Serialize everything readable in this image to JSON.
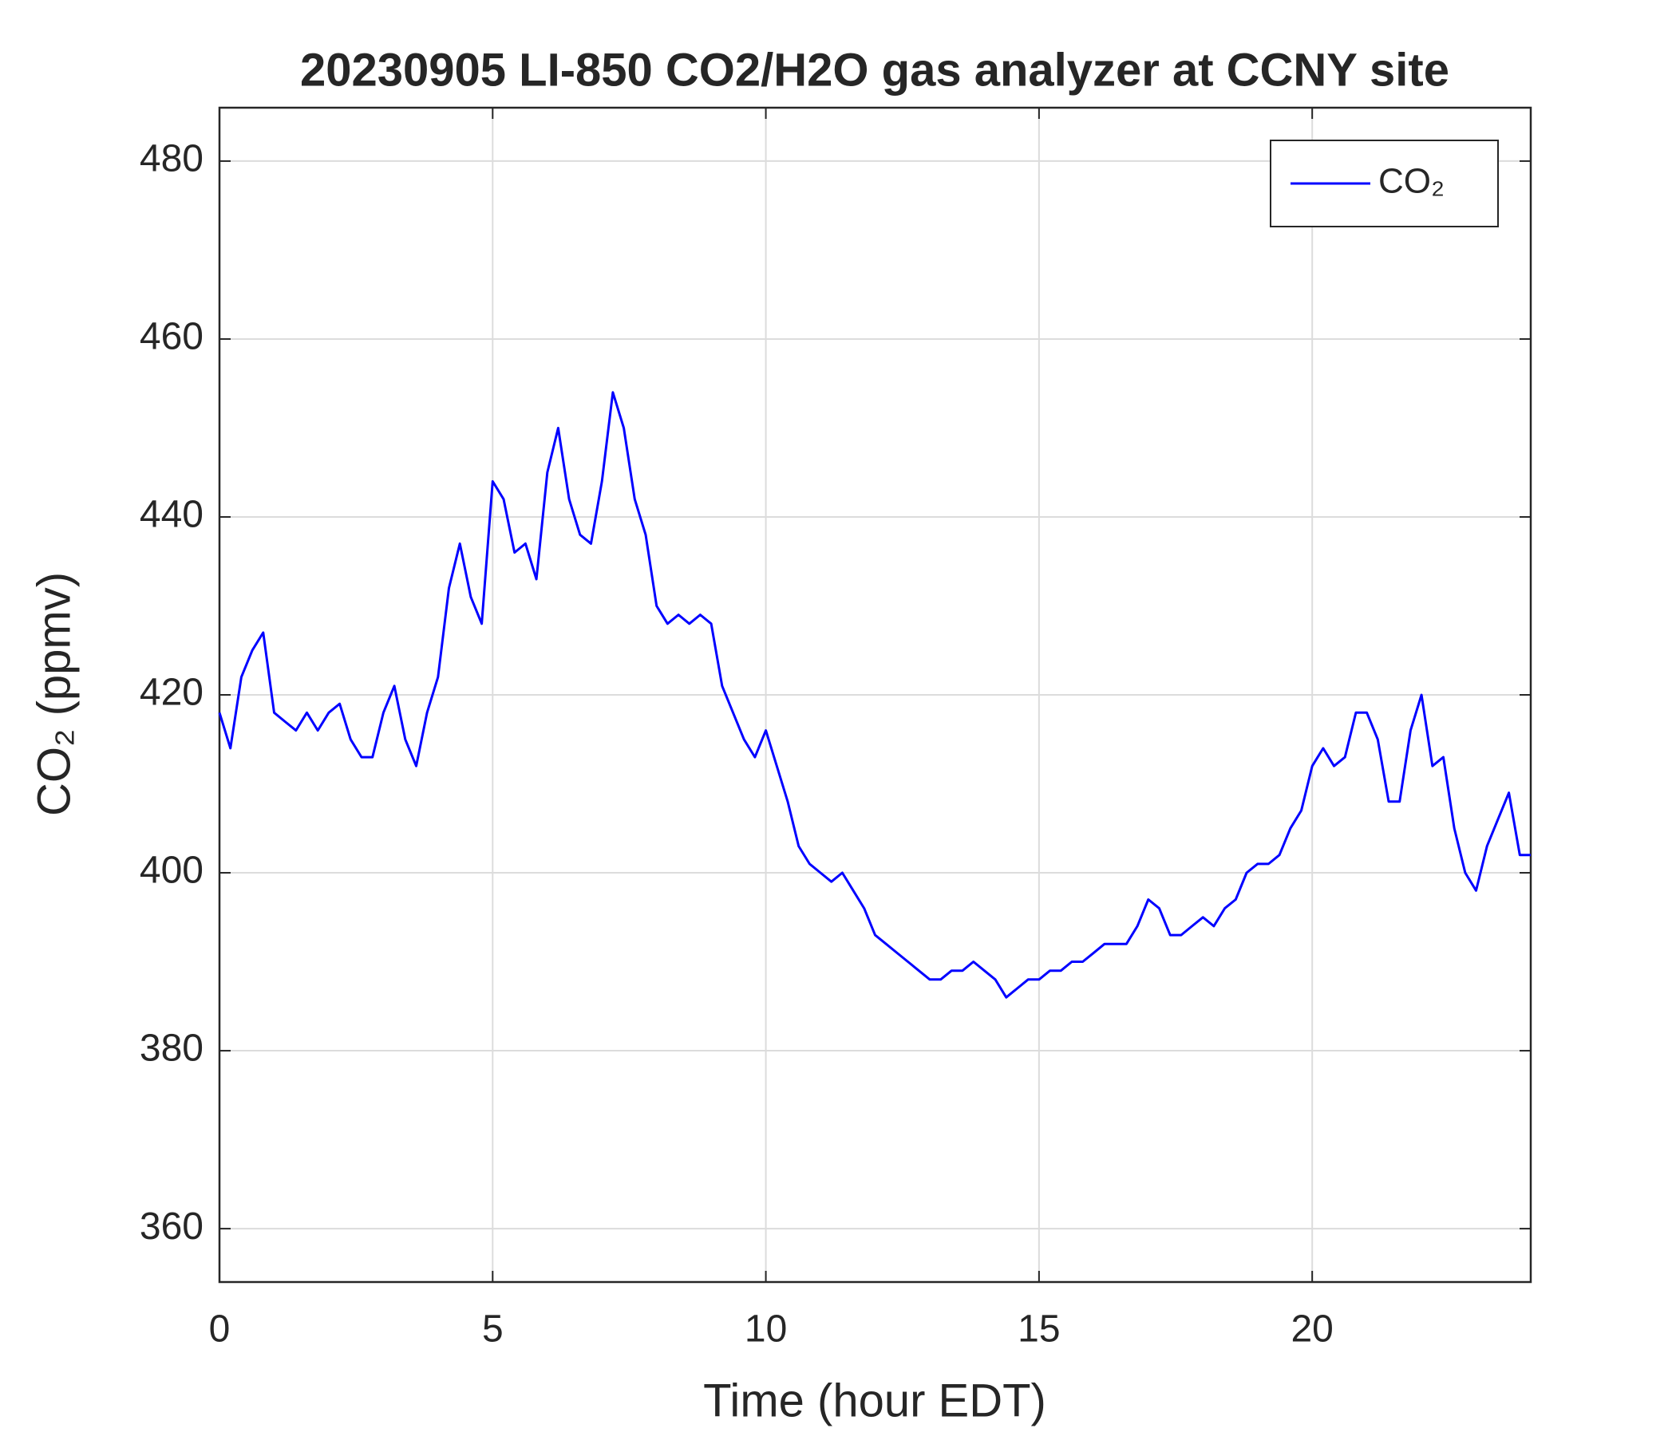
{
  "chart_data": {
    "type": "line",
    "title": "20230905 LI-850 CO2/H2O gas analyzer at CCNY site",
    "x_label": "Time (hour EDT)",
    "y_label": "CO₂ (ppmv)",
    "x": [
      0,
      0.2,
      0.4,
      0.6,
      0.8,
      1,
      1.2,
      1.4,
      1.6,
      1.8,
      2,
      2.2,
      2.4,
      2.6,
      2.8,
      3,
      3.2,
      3.4,
      3.6,
      3.8,
      4,
      4.2,
      4.4,
      4.6,
      4.8,
      5,
      5.2,
      5.4,
      5.6,
      5.8,
      6,
      6.2,
      6.4,
      6.6,
      6.8,
      7,
      7.2,
      7.4,
      7.6,
      7.8,
      8,
      8.2,
      8.4,
      8.6,
      8.8,
      9,
      9.2,
      9.4,
      9.6,
      9.8,
      10,
      10.2,
      10.4,
      10.6,
      10.8,
      11,
      11.2,
      11.4,
      11.6,
      11.8,
      12,
      12.2,
      12.4,
      12.6,
      12.8,
      13,
      13.2,
      13.4,
      13.6,
      13.8,
      14,
      14.2,
      14.4,
      14.6,
      14.8,
      15,
      15.2,
      15.4,
      15.6,
      15.8,
      16,
      16.2,
      16.4,
      16.6,
      16.8,
      17,
      17.2,
      17.4,
      17.6,
      17.8,
      18,
      18.2,
      18.4,
      18.6,
      18.8,
      19,
      19.2,
      19.4,
      19.6,
      19.8,
      20,
      20.2,
      20.4,
      20.6,
      20.8,
      21,
      21.2,
      21.4,
      21.6,
      21.8,
      22,
      22.2,
      22.4,
      22.6,
      22.8,
      23,
      23.2,
      23.4,
      23.6,
      23.8,
      24
    ],
    "series": [
      {
        "name": "CO₂",
        "color": "#0000ff",
        "values": [
          418,
          414,
          422,
          425,
          427,
          418,
          417,
          416,
          418,
          416,
          418,
          419,
          415,
          413,
          413,
          418,
          421,
          415,
          412,
          418,
          422,
          432,
          437,
          431,
          428,
          444,
          442,
          436,
          437,
          433,
          445,
          450,
          442,
          438,
          437,
          444,
          454,
          450,
          442,
          438,
          430,
          428,
          429,
          428,
          429,
          428,
          421,
          418,
          415,
          413,
          416,
          412,
          408,
          403,
          401,
          400,
          399,
          400,
          398,
          396,
          393,
          392,
          391,
          390,
          389,
          388,
          388,
          389,
          389,
          390,
          389,
          388,
          386,
          387,
          388,
          388,
          389,
          389,
          390,
          390,
          391,
          392,
          392,
          392,
          394,
          397,
          396,
          393,
          393,
          394,
          395,
          394,
          396,
          397,
          400,
          401,
          401,
          402,
          405,
          407,
          412,
          414,
          412,
          413,
          418,
          418,
          415,
          408,
          408,
          416,
          420,
          412,
          413,
          405,
          400,
          398,
          403,
          406,
          409,
          402,
          402
        ]
      }
    ],
    "xlim": [
      0,
      24
    ],
    "xticks": [
      0,
      5,
      10,
      15,
      20
    ],
    "ylim": [
      354,
      486
    ],
    "yticks": [
      360,
      380,
      400,
      420,
      440,
      460,
      480
    ],
    "grid": true,
    "legend": "upper right"
  }
}
